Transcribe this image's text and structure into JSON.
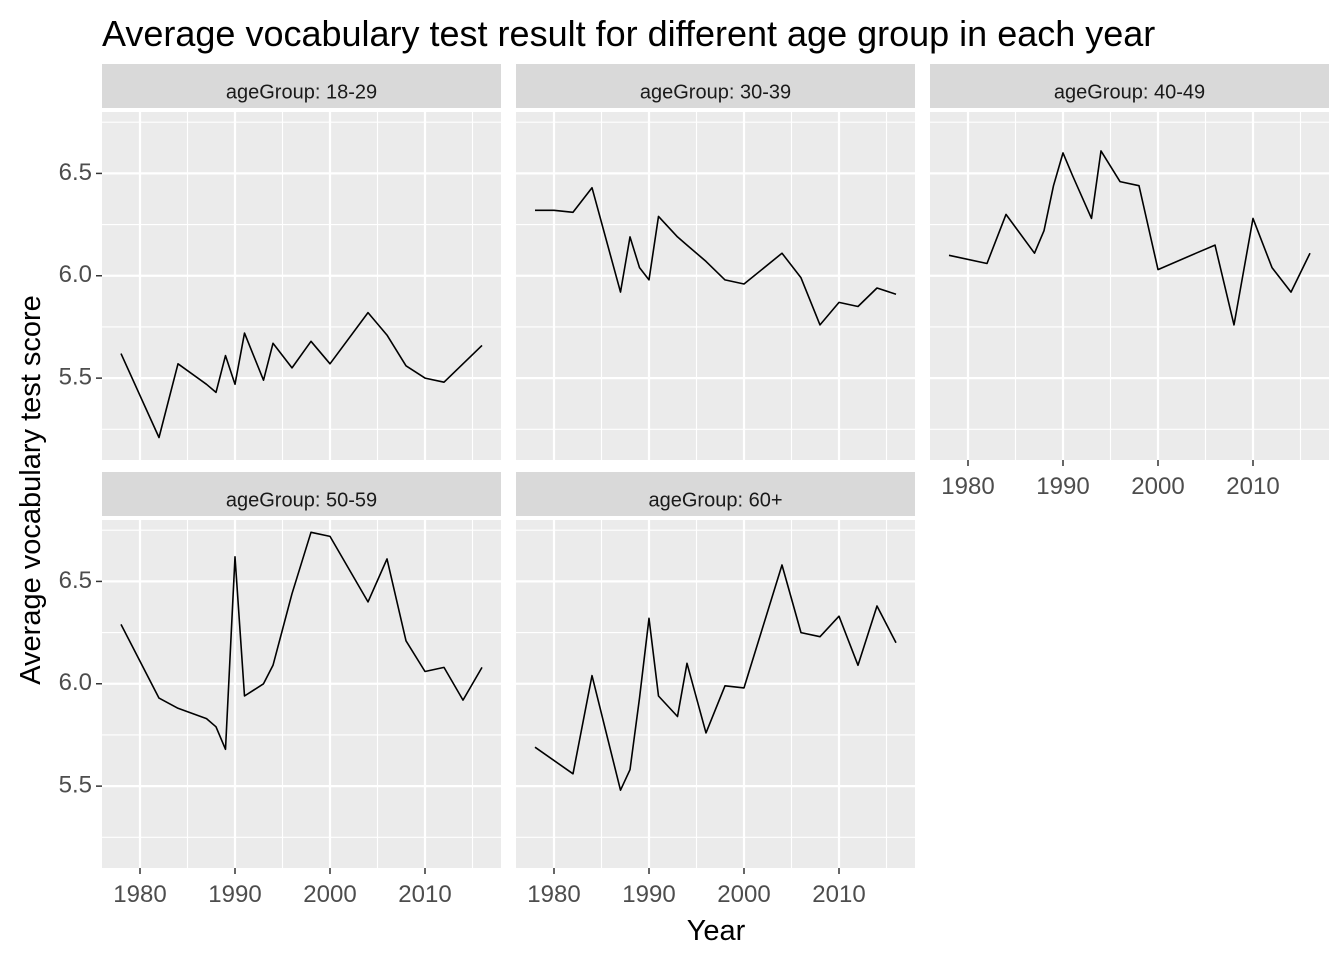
{
  "chart_data": {
    "type": "line",
    "facet": "wrap",
    "title": "Average vocabulary test result for different age group in each year",
    "xlabel": "Year",
    "ylabel": "Average vocabulary test score",
    "xlim": [
      1976,
      2018
    ],
    "ylim": [
      5.1,
      6.8
    ],
    "x_ticks": [
      1980,
      1990,
      2000,
      2010
    ],
    "y_ticks": [
      5.5,
      6.0,
      6.5
    ],
    "y_tick_labels": [
      "5.5",
      "6.0",
      "6.5"
    ],
    "grid": true,
    "colors": {
      "panel_bg": "#ebebeb",
      "strip_bg": "#d9d9d9",
      "grid": "#ffffff",
      "line": "#000000",
      "tick_text": "#4d4d4d",
      "tick_mark": "#333333"
    },
    "series": [
      {
        "name": "ageGroup: 18-29",
        "x": [
          1978,
          1982,
          1984,
          1987,
          1988,
          1989,
          1990,
          1991,
          1993,
          1994,
          1996,
          1998,
          2000,
          2004,
          2006,
          2008,
          2010,
          2012,
          2014,
          2016
        ],
        "values": [
          5.62,
          5.21,
          5.57,
          5.47,
          5.43,
          5.61,
          5.47,
          5.72,
          5.49,
          5.67,
          5.55,
          5.68,
          5.57,
          5.82,
          5.71,
          5.56,
          5.5,
          5.48,
          5.57,
          5.66
        ]
      },
      {
        "name": "ageGroup: 30-39",
        "x": [
          1978,
          1980,
          1982,
          1984,
          1987,
          1988,
          1989,
          1990,
          1991,
          1993,
          1994,
          1996,
          1998,
          2000,
          2004,
          2006,
          2008,
          2010,
          2012,
          2014,
          2016
        ],
        "values": [
          6.32,
          6.32,
          6.31,
          6.43,
          5.92,
          6.19,
          6.04,
          5.98,
          6.29,
          6.19,
          6.15,
          6.07,
          5.98,
          5.96,
          6.11,
          5.99,
          5.76,
          5.87,
          5.85,
          5.94,
          5.91
        ]
      },
      {
        "name": "ageGroup: 40-49",
        "x": [
          1978,
          1982,
          1984,
          1987,
          1988,
          1989,
          1990,
          1991,
          1993,
          1994,
          1996,
          1998,
          2000,
          2004,
          2006,
          2008,
          2010,
          2012,
          2014,
          2016
        ],
        "values": [
          6.1,
          6.06,
          6.3,
          6.11,
          6.22,
          6.44,
          6.6,
          6.49,
          6.28,
          6.61,
          6.46,
          6.44,
          6.03,
          6.11,
          6.15,
          5.76,
          6.28,
          6.04,
          5.92,
          6.11
        ]
      },
      {
        "name": "ageGroup: 50-59",
        "x": [
          1978,
          1980,
          1982,
          1984,
          1987,
          1988,
          1989,
          1990,
          1991,
          1993,
          1994,
          1996,
          1998,
          2000,
          2004,
          2006,
          2008,
          2010,
          2012,
          2014,
          2016
        ],
        "values": [
          6.29,
          6.11,
          5.93,
          5.88,
          5.83,
          5.79,
          5.68,
          6.62,
          5.94,
          6.0,
          6.09,
          6.44,
          6.74,
          6.72,
          6.4,
          6.61,
          6.21,
          6.06,
          6.08,
          5.92,
          6.08
        ]
      },
      {
        "name": "ageGroup: 60+",
        "x": [
          1978,
          1982,
          1984,
          1987,
          1988,
          1989,
          1990,
          1991,
          1993,
          1994,
          1996,
          1998,
          2000,
          2004,
          2006,
          2008,
          2010,
          2012,
          2014,
          2016
        ],
        "values": [
          5.69,
          5.56,
          6.04,
          5.48,
          5.58,
          5.93,
          6.32,
          5.94,
          5.84,
          6.1,
          5.76,
          5.99,
          5.98,
          6.58,
          6.25,
          6.23,
          6.33,
          6.09,
          6.38,
          6.2
        ]
      }
    ]
  }
}
